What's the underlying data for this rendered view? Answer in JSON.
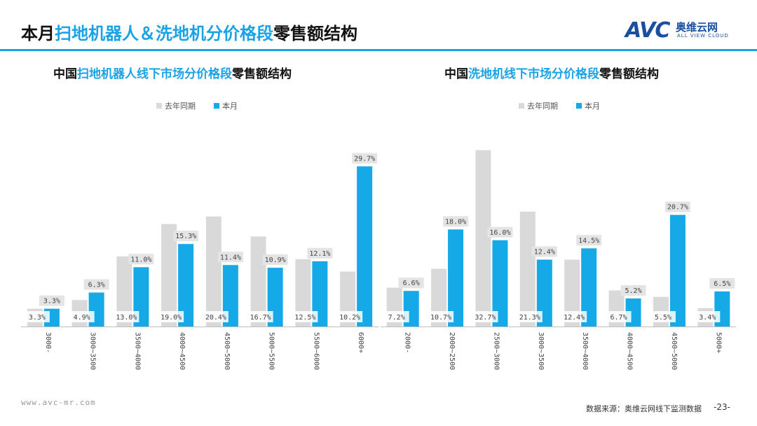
{
  "header": {
    "title_pre": "本月",
    "title_hl": "扫地机器人＆洗地机分价格段",
    "title_post": "零售额结构",
    "logo_mark": "AVC",
    "logo_cn": "奥维云网",
    "logo_en": "ALL VIEW CLOUD"
  },
  "footer": {
    "url": "www.avc-mr.com",
    "source": "数据来源：奥维云网线下监测数据",
    "page": "-23-"
  },
  "colors": {
    "prev": "#d9d9d9",
    "curr": "#16a9e8",
    "accent": "#1aa2e6"
  },
  "chart_data": [
    {
      "type": "bar",
      "title_pre": "中国",
      "title_hl": "扫地机器人线下市场分价格段",
      "title_post": "零售额结构",
      "categories": [
        "3000-",
        "3000~3500",
        "3500~4000",
        "4000~4500",
        "4500~5000",
        "5000~5500",
        "5500~6000",
        "6000+"
      ],
      "series": [
        {
          "name": "去年同期",
          "values": [
            3.3,
            4.9,
            13.0,
            19.0,
            20.4,
            16.7,
            12.5,
            10.2
          ]
        },
        {
          "name": "本月",
          "values": [
            3.3,
            6.3,
            11.0,
            15.3,
            11.4,
            10.9,
            12.1,
            29.7
          ]
        }
      ],
      "unit": "%",
      "ylim": [
        0,
        33
      ],
      "grid": false,
      "legend": "top-center"
    },
    {
      "type": "bar",
      "title_pre": "中国",
      "title_hl": "洗地机线下市场分价格段",
      "title_post": "零售额结构",
      "categories": [
        "2000-",
        "2000~2500",
        "2500~3000",
        "3000~3500",
        "3500~4000",
        "4000~4500",
        "4500~5000",
        "5000+"
      ],
      "series": [
        {
          "name": "去年同期",
          "values": [
            7.2,
            10.7,
            32.7,
            21.3,
            12.4,
            6.7,
            5.5,
            3.4
          ]
        },
        {
          "name": "本月",
          "values": [
            6.6,
            18.0,
            16.0,
            12.4,
            14.5,
            5.2,
            20.7,
            6.5
          ]
        }
      ],
      "unit": "%",
      "ylim": [
        0,
        33
      ],
      "grid": false,
      "legend": "top-center"
    }
  ]
}
